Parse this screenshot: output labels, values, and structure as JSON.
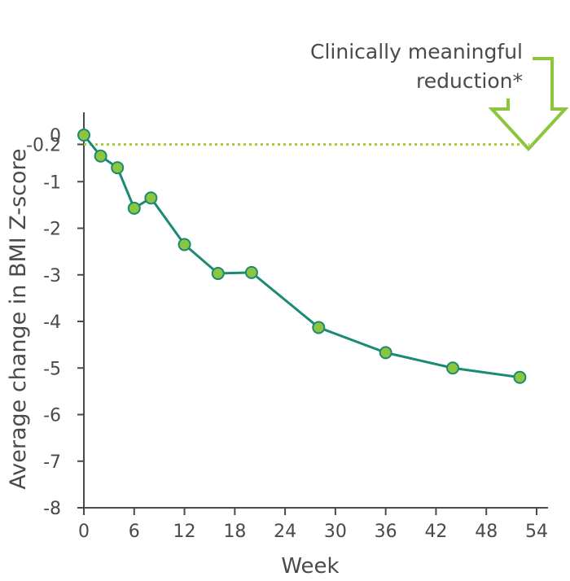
{
  "chart_data": {
    "type": "line",
    "title": "",
    "xlabel": "Week",
    "ylabel": "Average change in BMI Z-score",
    "xlim": [
      0,
      54
    ],
    "ylim": [
      -8,
      0
    ],
    "xticks": [
      0,
      6,
      12,
      18,
      24,
      30,
      36,
      42,
      48,
      54
    ],
    "xtick_labels": [
      "0",
      "6",
      "12",
      "18",
      "24",
      "30",
      "36",
      "42",
      "48",
      "54"
    ],
    "yticks": [
      0,
      -0.2,
      -1,
      -2,
      -3,
      -4,
      -5,
      -6,
      -7,
      -8
    ],
    "ytick_labels": [
      "0",
      "-0.2",
      "-1",
      "-2",
      "-3",
      "-4",
      "-5",
      "-6",
      "-7",
      "-8"
    ],
    "grid": false,
    "series": [
      {
        "x": [
          0,
          2,
          4,
          6,
          8,
          12,
          16,
          20,
          28,
          36,
          44,
          52
        ],
        "y": [
          0,
          -0.45,
          -0.7,
          -1.57,
          -1.35,
          -2.35,
          -2.97,
          -2.95,
          -4.13,
          -4.67,
          -5.0,
          -5.2
        ]
      }
    ],
    "reference_line": {
      "y": -0.2,
      "style": "dotted"
    },
    "annotation": {
      "text_lines": [
        "Clinically meaningful",
        "reduction*"
      ]
    },
    "colors": {
      "line": "#1a8a72",
      "marker_fill": "#8cc63f",
      "marker_stroke": "#1a8a72",
      "reference": "#a6ce39",
      "arrow": "#8cc63f",
      "text": "#4a4a4a",
      "axis": "#4a4a4a"
    }
  }
}
